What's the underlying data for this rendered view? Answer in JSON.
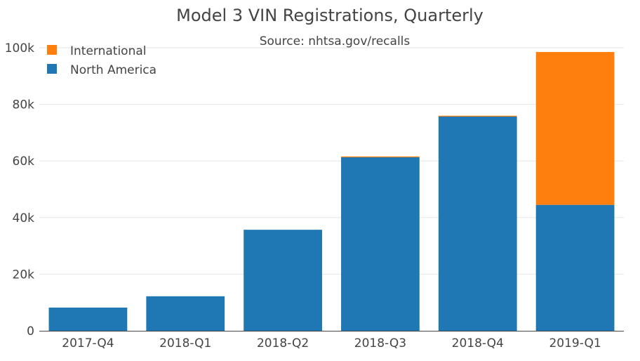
{
  "chart_data": {
    "type": "bar",
    "stacked": true,
    "title": "Model 3 VIN Registrations, Quarterly",
    "subtitle": "Source: nhtsa.gov/recalls",
    "categories": [
      "2017-Q4",
      "2018-Q1",
      "2018-Q2",
      "2018-Q3",
      "2018-Q4",
      "2019-Q1"
    ],
    "series": [
      {
        "name": "North America",
        "color": "#1f77b4",
        "values": [
          8200,
          12200,
          35700,
          61300,
          75700,
          44500
        ]
      },
      {
        "name": "International",
        "color": "#ff7f0e",
        "values": [
          0,
          0,
          0,
          300,
          300,
          54000
        ]
      }
    ],
    "ylim": [
      0,
      100000
    ],
    "yticks": [
      0,
      20000,
      40000,
      60000,
      80000,
      100000
    ],
    "ytick_labels": [
      "0",
      "20k",
      "40k",
      "60k",
      "80k",
      "100k"
    ],
    "grid": true,
    "legend_position": "top-left"
  }
}
